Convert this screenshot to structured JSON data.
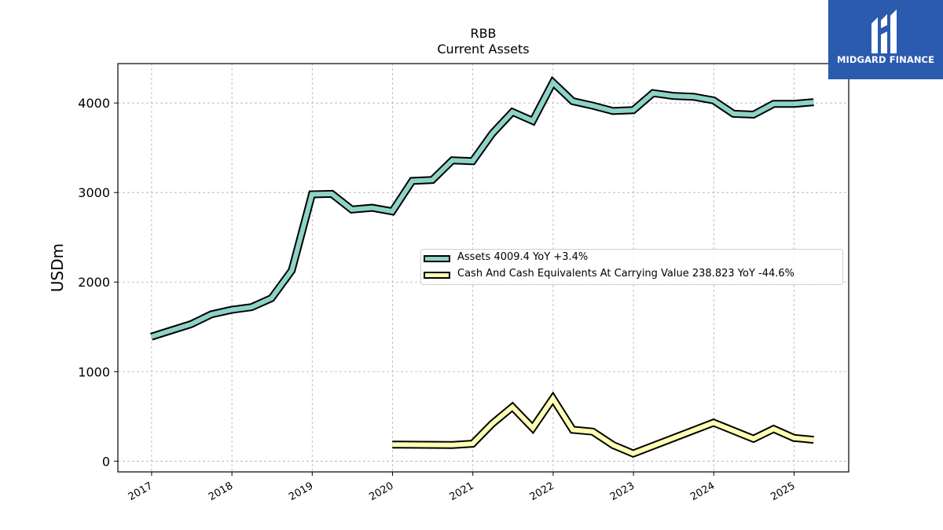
{
  "chart_data": {
    "type": "line",
    "title": "RBB",
    "subtitle": "Current  Assets",
    "ylabel": "USDm",
    "xlabel": "",
    "ylim": [
      -120,
      4440
    ],
    "y_ticks": [
      0,
      1000,
      2000,
      3000,
      4000
    ],
    "x_ticks": [
      "2017",
      "2018",
      "2019",
      "2020",
      "2021",
      "2022",
      "2023",
      "2024",
      "2025"
    ],
    "grid": true,
    "legend_position": "center-right",
    "series": [
      {
        "name": "Assets",
        "legend_label": "Assets  4009.4 YoY +3.4%",
        "color": "#8dd3c7",
        "x": [
          "2016-12-31",
          "2017-03-31",
          "2017-06-30",
          "2017-09-30",
          "2017-12-31",
          "2018-03-31",
          "2018-06-30",
          "2018-09-30",
          "2018-12-31",
          "2019-03-31",
          "2019-06-30",
          "2019-09-30",
          "2019-12-31",
          "2020-03-31",
          "2020-06-30",
          "2020-09-30",
          "2020-12-31",
          "2021-03-31",
          "2021-06-30",
          "2021-09-30",
          "2021-12-31",
          "2022-03-31",
          "2022-06-30",
          "2022-09-30",
          "2022-12-31",
          "2023-03-31",
          "2023-06-30",
          "2023-09-30",
          "2023-12-31",
          "2024-03-31",
          "2024-06-30",
          "2024-09-30",
          "2024-12-31",
          "2025-03-31"
        ],
        "values": [
          1390,
          1460,
          1530,
          1640,
          1690,
          1720,
          1820,
          2130,
          2980,
          2985,
          2810,
          2830,
          2790,
          3130,
          3140,
          3360,
          3350,
          3660,
          3900,
          3800,
          4230,
          4020,
          3970,
          3910,
          3920,
          4110,
          4080,
          4070,
          4030,
          3880,
          3870,
          3990,
          3990,
          4009.4
        ]
      },
      {
        "name": "Cash And Cash Equivalents At Carrying Value",
        "legend_label": "Cash And Cash Equivalents At Carrying Value  238.823 YoY -44.6%",
        "color": "#ffffb3",
        "x": [
          "2019-12-31",
          "2020-09-30",
          "2020-12-31",
          "2021-03-31",
          "2021-06-30",
          "2021-09-30",
          "2021-12-31",
          "2022-03-31",
          "2022-06-30",
          "2022-09-30",
          "2022-12-31",
          "2023-12-31",
          "2024-06-30",
          "2024-09-30",
          "2024-12-31",
          "2025-03-31"
        ],
        "values": [
          185,
          180,
          195,
          420,
          605,
          370,
          700,
          350,
          330,
          180,
          85,
          430,
          250,
          360,
          260,
          238.823
        ]
      }
    ]
  },
  "branding": {
    "name": "MIDGARD FINANCE",
    "bg_color": "#2b5bae"
  }
}
